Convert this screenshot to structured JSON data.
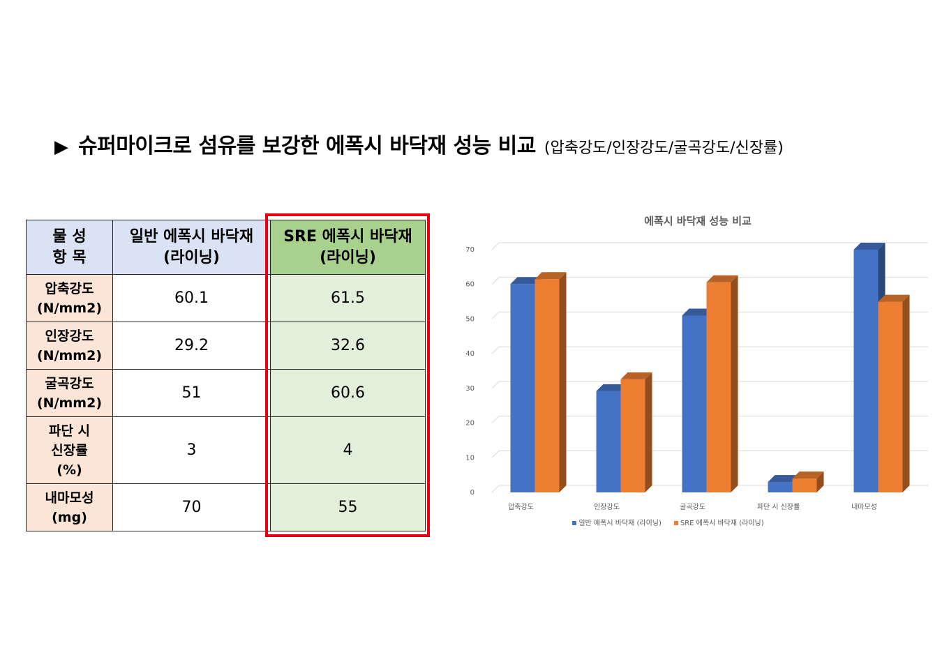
{
  "heading": {
    "arrow": "▶",
    "main": "슈퍼마이크로 섬유를 보강한 에폭시 바닥재 성능 비교",
    "sub": "(압축강도/인장강도/굴곡강도/신장률)"
  },
  "table": {
    "headers": {
      "item_line1": "물 성",
      "item_line2": "항 목",
      "general_line1": "일반 에폭시 바닥재",
      "general_line2": "(라이닝)",
      "sre_line1": "SRE 에폭시 바닥재",
      "sre_line2": "(라이닝)"
    },
    "rows": [
      {
        "item": [
          "압축강도",
          "(N/mm2)"
        ],
        "general": "60.1",
        "sre": "61.5"
      },
      {
        "item": [
          "인장강도",
          "(N/mm2)"
        ],
        "general": "29.2",
        "sre": "32.6"
      },
      {
        "item": [
          "굴곡강도",
          "(N/mm2)"
        ],
        "general": "51",
        "sre": "60.6"
      },
      {
        "item": [
          "파단 시",
          "신장률",
          "(%)"
        ],
        "general": "3",
        "sre": "4"
      },
      {
        "item": [
          "내마모성",
          "(mg)"
        ],
        "general": "70",
        "sre": "55"
      }
    ],
    "colors": {
      "header": "#dae3f3",
      "sre_header": "#a9d18e",
      "item_bg": "#fbe5d6",
      "sre_bg": "#e2efda",
      "highlight_border": "#e50012"
    }
  },
  "chart_data": {
    "type": "bar",
    "title": "에폭시 바닥재 성능 비교",
    "categories": [
      "압축강도",
      "인장강도",
      "굴곡강도",
      "파단 시 신장률",
      "내마모성"
    ],
    "series": [
      {
        "name": "일반 에폭시 바닥재 (라이닝)",
        "values": [
          60.1,
          29.2,
          51,
          3,
          70
        ],
        "color": "#4472c4"
      },
      {
        "name": "SRE 에폭시 바닥재 (라이닝)",
        "values": [
          61.5,
          32.6,
          60.6,
          4,
          55
        ],
        "color": "#ed7d31"
      }
    ],
    "ylim": [
      0,
      70
    ],
    "yticks": [
      0,
      10,
      20,
      30,
      40,
      50,
      60,
      70
    ],
    "grid": true,
    "legend_position": "bottom",
    "style": "3d-column"
  }
}
